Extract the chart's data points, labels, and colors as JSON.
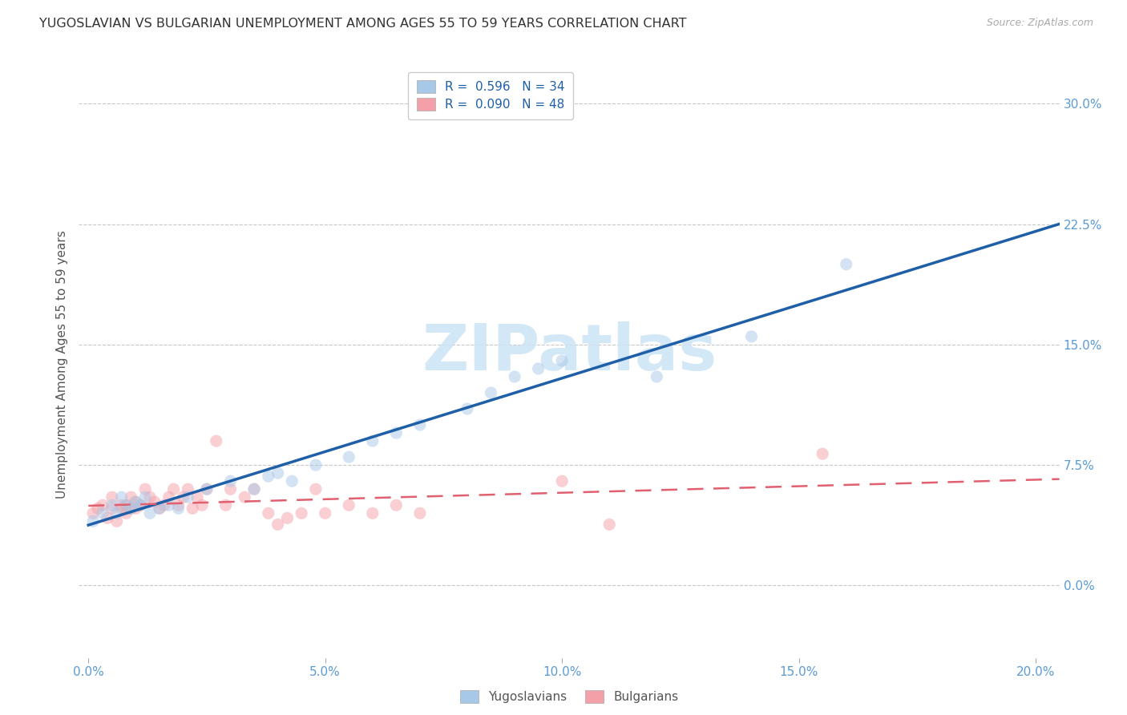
{
  "title": "YUGOSLAVIAN VS BULGARIAN UNEMPLOYMENT AMONG AGES 55 TO 59 YEARS CORRELATION CHART",
  "source": "Source: ZipAtlas.com",
  "ylabel": "Unemployment Among Ages 55 to 59 years",
  "xlabel_ticks": [
    "0.0%",
    "5.0%",
    "10.0%",
    "15.0%",
    "20.0%"
  ],
  "xlabel_vals": [
    0.0,
    0.05,
    0.1,
    0.15,
    0.2
  ],
  "ylabel_ticks": [
    "0.0%",
    "7.5%",
    "15.0%",
    "22.5%",
    "30.0%"
  ],
  "ylabel_vals": [
    0.0,
    0.075,
    0.15,
    0.225,
    0.3
  ],
  "xlim": [
    -0.002,
    0.205
  ],
  "ylim": [
    -0.045,
    0.32
  ],
  "watermark": "ZIPatlas",
  "r_yug": 0.596,
  "n_yug": 34,
  "r_bul": 0.09,
  "n_bul": 48,
  "yug_scatter_x": [
    0.001,
    0.003,
    0.005,
    0.006,
    0.007,
    0.008,
    0.009,
    0.01,
    0.011,
    0.012,
    0.013,
    0.015,
    0.017,
    0.019,
    0.021,
    0.025,
    0.03,
    0.035,
    0.038,
    0.04,
    0.043,
    0.048,
    0.055,
    0.06,
    0.065,
    0.07,
    0.08,
    0.085,
    0.09,
    0.095,
    0.1,
    0.12,
    0.14,
    0.16
  ],
  "yug_scatter_y": [
    0.04,
    0.045,
    0.05,
    0.045,
    0.055,
    0.05,
    0.048,
    0.052,
    0.05,
    0.055,
    0.045,
    0.048,
    0.05,
    0.048,
    0.055,
    0.06,
    0.065,
    0.06,
    0.068,
    0.07,
    0.065,
    0.075,
    0.08,
    0.09,
    0.095,
    0.1,
    0.11,
    0.12,
    0.13,
    0.135,
    0.14,
    0.13,
    0.155,
    0.2
  ],
  "bul_scatter_x": [
    0.001,
    0.002,
    0.003,
    0.004,
    0.005,
    0.005,
    0.006,
    0.007,
    0.007,
    0.008,
    0.008,
    0.009,
    0.009,
    0.01,
    0.01,
    0.011,
    0.012,
    0.013,
    0.014,
    0.015,
    0.016,
    0.017,
    0.018,
    0.019,
    0.02,
    0.021,
    0.022,
    0.023,
    0.024,
    0.025,
    0.027,
    0.029,
    0.03,
    0.033,
    0.035,
    0.038,
    0.04,
    0.042,
    0.045,
    0.048,
    0.05,
    0.055,
    0.06,
    0.065,
    0.07,
    0.1,
    0.11,
    0.155
  ],
  "bul_scatter_y": [
    0.045,
    0.048,
    0.05,
    0.042,
    0.048,
    0.055,
    0.04,
    0.048,
    0.05,
    0.05,
    0.045,
    0.048,
    0.055,
    0.052,
    0.048,
    0.05,
    0.06,
    0.055,
    0.052,
    0.048,
    0.05,
    0.055,
    0.06,
    0.05,
    0.055,
    0.06,
    0.048,
    0.055,
    0.05,
    0.06,
    0.09,
    0.05,
    0.06,
    0.055,
    0.06,
    0.045,
    0.038,
    0.042,
    0.045,
    0.06,
    0.045,
    0.05,
    0.045,
    0.05,
    0.045,
    0.065,
    0.038,
    0.082
  ],
  "yug_line_x": [
    0.0,
    0.205
  ],
  "yug_line_y": [
    0.028,
    0.205
  ],
  "bul_line_x": [
    0.0,
    0.205
  ],
  "bul_line_y": [
    0.046,
    0.092
  ],
  "yug_color": "#a8c8e8",
  "bul_color": "#f4a0a8",
  "yug_line_color": "#1e5fa8",
  "bul_line_color": "#e06070",
  "axis_color": "#5b9bd5",
  "grid_color": "#c8c8c8",
  "marker_size": 120,
  "marker_alpha": 0.5
}
